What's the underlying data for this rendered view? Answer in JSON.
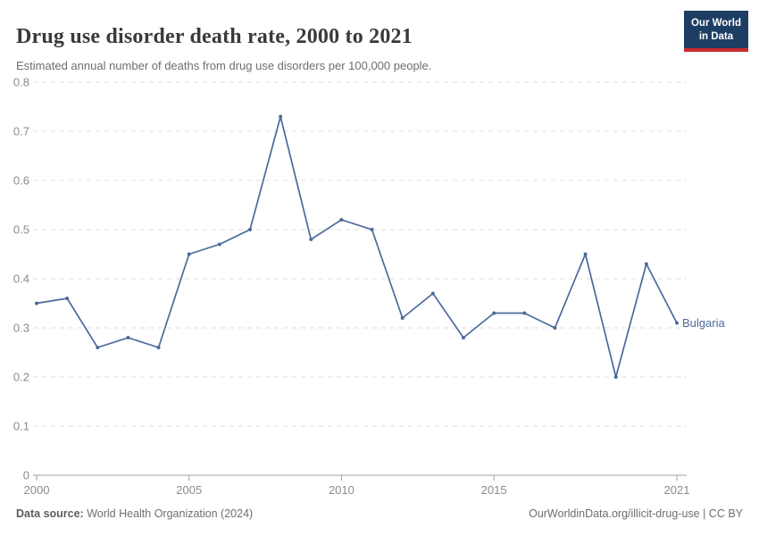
{
  "header": {
    "title": "Drug use disorder death rate, 2000 to 2021",
    "subtitle": "Estimated annual number of deaths from drug use disorders per 100,000 people.",
    "logo": {
      "line1": "Our World",
      "line2": "in Data",
      "bg_color": "#1d3d63",
      "stripe_color": "#cb2d30"
    }
  },
  "chart_data": {
    "type": "line",
    "title": "Drug use disorder death rate, 2000 to 2021",
    "xlabel": "",
    "ylabel": "",
    "xlim": [
      2000,
      2021
    ],
    "ylim": [
      0,
      0.8
    ],
    "x_ticks": [
      2000,
      2005,
      2010,
      2015,
      2021
    ],
    "y_ticks": [
      0,
      0.1,
      0.2,
      0.3,
      0.4,
      0.5,
      0.6,
      0.7,
      0.8
    ],
    "grid": "horizontal-dashed",
    "legend_position": "end-of-line-label",
    "x": [
      2000,
      2001,
      2002,
      2003,
      2004,
      2005,
      2006,
      2007,
      2008,
      2009,
      2010,
      2011,
      2012,
      2013,
      2014,
      2015,
      2016,
      2017,
      2018,
      2019,
      2020,
      2021
    ],
    "series": [
      {
        "name": "Bulgaria",
        "color": "#4C6A9C",
        "values": [
          0.35,
          0.36,
          0.26,
          0.28,
          0.26,
          0.45,
          0.47,
          0.5,
          0.73,
          0.48,
          0.52,
          0.5,
          0.32,
          0.37,
          0.28,
          0.33,
          0.33,
          0.3,
          0.45,
          0.2,
          0.43,
          0.31
        ]
      }
    ]
  },
  "styles": {
    "gridline_color": "#dddddd",
    "axis_color": "#a1a1a1",
    "tick_label_color": "#8b8b8b",
    "line_color": "#4C6A9C"
  },
  "footer": {
    "source_label": "Data source:",
    "source_value": " World Health Organization (2024)",
    "credit": "OurWorldinData.org/illicit-drug-use | CC BY"
  }
}
